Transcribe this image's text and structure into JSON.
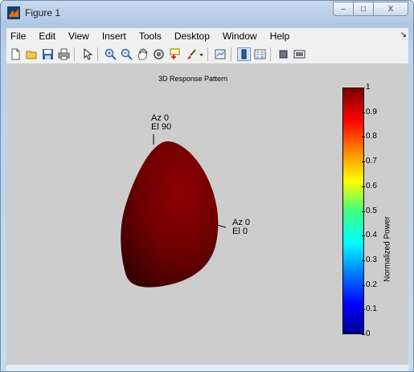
{
  "window": {
    "title": "Figure 1",
    "buttons": {
      "minimize": "–",
      "maximize": "□",
      "close": "X"
    }
  },
  "menu": {
    "items": [
      "File",
      "Edit",
      "View",
      "Insert",
      "Tools",
      "Desktop",
      "Window",
      "Help"
    ],
    "dock": "↘"
  },
  "toolbar": {
    "icons": [
      "new-figure-icon",
      "open-file-icon",
      "save-icon",
      "print-icon",
      "edit-plot-arrow-icon",
      "zoom-in-icon",
      "zoom-out-icon",
      "pan-icon",
      "rotate-3d-icon",
      "data-cursor-icon",
      "brush-icon",
      "brush-dropdown-icon",
      "link-plot-icon",
      "colorbar-icon",
      "legend-icon",
      "hide-plot-tools-icon",
      "show-plot-tools-icon"
    ]
  },
  "plot": {
    "title": "3D Response Pattern",
    "annotations": [
      {
        "line1": "Az 0",
        "line2": "El 90"
      },
      {
        "line1": "Az 0",
        "line2": "El 0"
      }
    ],
    "surface_color": "#8b0000"
  },
  "colorbar": {
    "label": "Normalized Power",
    "ticks": [
      "1",
      "0.9",
      "0.8",
      "0.7",
      "0.6",
      "0.5",
      "0.4",
      "0.3",
      "0.2",
      "0.1",
      "0"
    ],
    "colormap": "jet"
  }
}
